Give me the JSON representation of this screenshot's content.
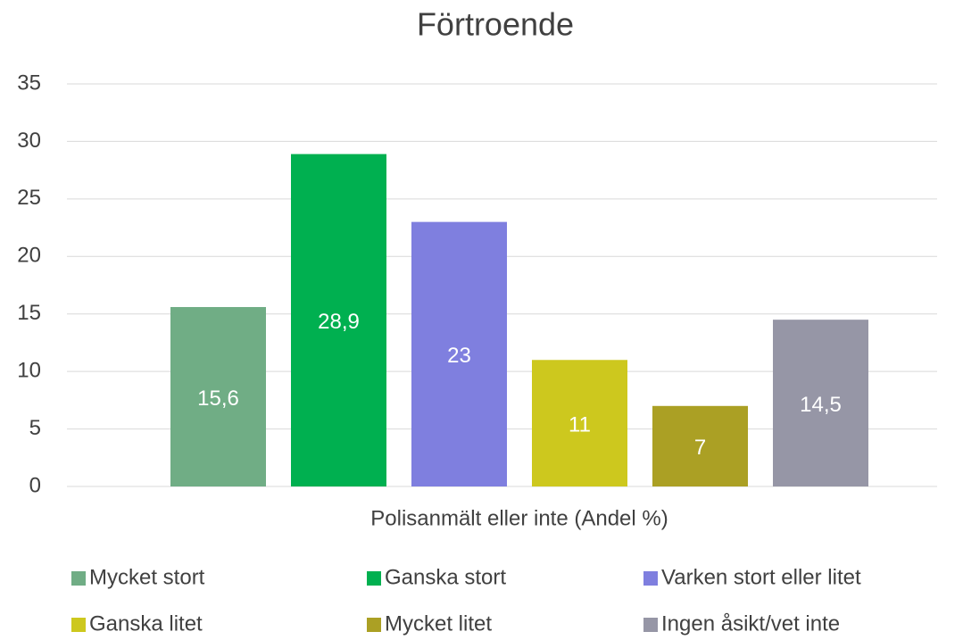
{
  "chart_data": {
    "type": "bar",
    "title": "Förtroende",
    "categories": [
      "Polisanmält eller inte (Andel %)"
    ],
    "series": [
      {
        "name": "Mycket stort",
        "color": "#70ad85",
        "values": [
          15.6
        ],
        "value_labels": [
          "15,6"
        ]
      },
      {
        "name": "Ganska stort",
        "color": "#00b050",
        "values": [
          28.9
        ],
        "value_labels": [
          "28,9"
        ]
      },
      {
        "name": "Varken stort eller litet",
        "color": "#7f7fdf",
        "values": [
          23
        ]
      },
      {
        "name": "Ganska litet",
        "color": "#cdc81e",
        "values": [
          11
        ]
      },
      {
        "name": "Mycket litet",
        "color": "#aba024",
        "values": [
          7
        ]
      },
      {
        "name": "Ingen åsikt/vet inte",
        "color": "#9696a6",
        "values": [
          14.5
        ],
        "value_labels": [
          "14,5"
        ]
      }
    ],
    "ylim": [
      0,
      35
    ],
    "yticks": [
      0,
      5,
      10,
      15,
      20,
      25,
      30,
      35
    ],
    "grid": true,
    "legend": "bottom"
  }
}
